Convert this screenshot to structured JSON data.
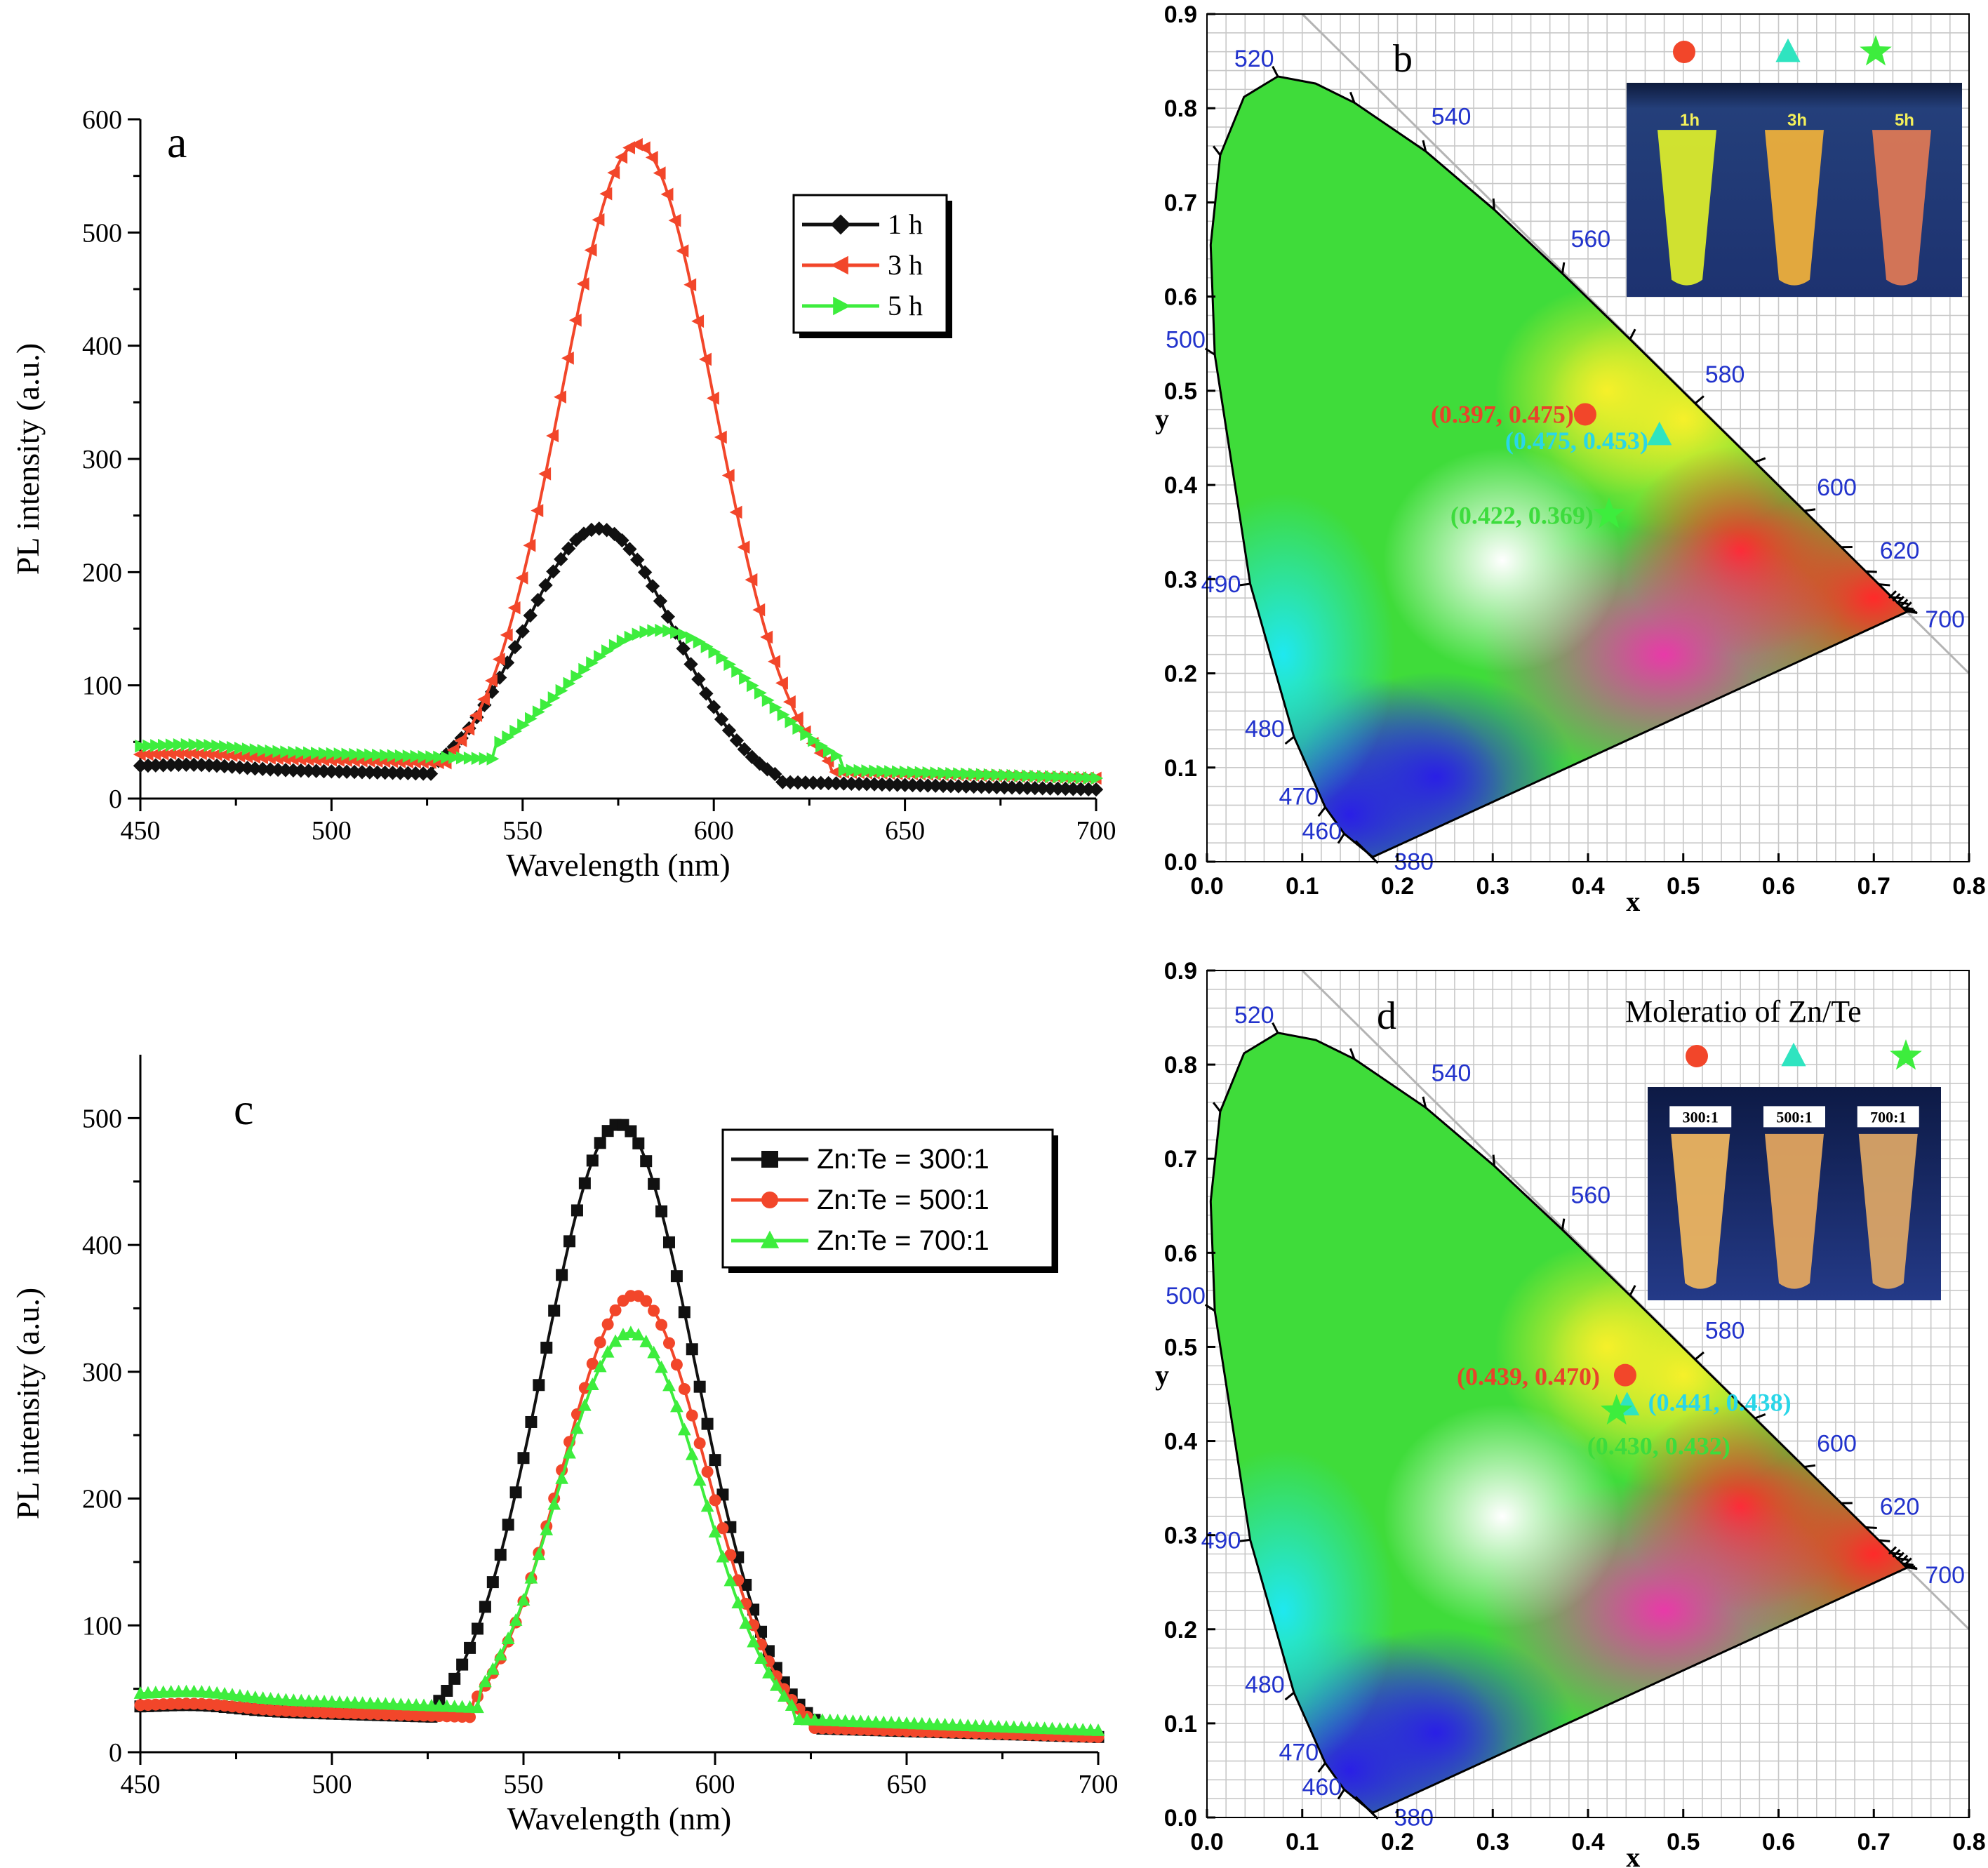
{
  "colors": {
    "series_black": "#111111",
    "series_red": "#f2462a",
    "series_green": "#3ded3d",
    "marker_cyan": "#2fe4c0",
    "label_blue": "#2233cc",
    "grid": "#c8c8c8",
    "label_red": "#e8432a",
    "label_cyan": "#29d6e8",
    "label_green": "#3ddc3d"
  },
  "chart_data": [
    {
      "panel": "a",
      "type": "line",
      "xlabel": "Wavelength (nm)",
      "ylabel": "PL intensity (a.u.)",
      "xlim": [
        450,
        700
      ],
      "ylim": [
        0,
        600
      ],
      "xticks": [
        450,
        500,
        550,
        600,
        650,
        700
      ],
      "yticks": [
        0,
        100,
        200,
        300,
        400,
        500,
        600
      ],
      "legend_position": "top-right",
      "series": [
        {
          "name": "1 h",
          "color": "#111111",
          "marker": "diamond",
          "peak_x": 570,
          "peak_y": 232,
          "width": 20,
          "baseline_left": 28,
          "baseline_right": 8
        },
        {
          "name": "3 h",
          "color": "#f2462a",
          "marker": "triangle-left",
          "peak_x": 580,
          "peak_y": 568,
          "width": 20,
          "baseline_left": 38,
          "baseline_right": 18
        },
        {
          "name": "5 h",
          "color": "#3ded3d",
          "marker": "triangle-right",
          "peak_x": 586,
          "peak_y": 138,
          "width": 26,
          "baseline_left": 45,
          "baseline_right": 18
        }
      ]
    },
    {
      "panel": "b",
      "type": "scatter",
      "xlabel": "x",
      "ylabel": "y",
      "xlim": [
        0.0,
        0.8
      ],
      "ylim": [
        0.0,
        0.9
      ],
      "xticks": [
        "0.0",
        "0.1",
        "0.2",
        "0.3",
        "0.4",
        "0.5",
        "0.6",
        "0.7",
        "0.8"
      ],
      "yticks": [
        "0.0",
        "0.1",
        "0.2",
        "0.3",
        "0.4",
        "0.5",
        "0.6",
        "0.7",
        "0.8",
        "0.9"
      ],
      "wavelength_labels": [
        "380",
        "460",
        "470",
        "480",
        "490",
        "500",
        "520",
        "540",
        "560",
        "580",
        "600",
        "620",
        "700"
      ],
      "points": [
        {
          "label": "(0.397, 0.475)",
          "x": 0.397,
          "y": 0.475,
          "marker": "circle",
          "color": "#f2462a"
        },
        {
          "label": "(0.475, 0.453)",
          "x": 0.475,
          "y": 0.453,
          "marker": "triangle",
          "color": "#2fe4c0"
        },
        {
          "label": "(0.422, 0.369)",
          "x": 0.422,
          "y": 0.369,
          "marker": "star",
          "color": "#3ded3d"
        }
      ],
      "inset_labels": [
        "1h",
        "3h",
        "5h"
      ]
    },
    {
      "panel": "c",
      "type": "line",
      "xlabel": "Wavelength (nm)",
      "ylabel": "PL intensity (a.u.)",
      "xlim": [
        450,
        700
      ],
      "ylim": [
        0,
        550
      ],
      "xticks": [
        450,
        500,
        550,
        600,
        650,
        700
      ],
      "yticks": [
        0,
        100,
        200,
        300,
        400,
        500
      ],
      "legend_position": "top-right",
      "series": [
        {
          "name": "Zn:Te = 300:1",
          "color": "#111111",
          "marker": "square",
          "peak_x": 575,
          "peak_y": 487,
          "width": 20,
          "baseline_left": 35,
          "baseline_right": 12
        },
        {
          "name": "Zn:Te = 500:1",
          "color": "#f2462a",
          "marker": "circle",
          "peak_x": 579,
          "peak_y": 352,
          "width": 19,
          "baseline_left": 36,
          "baseline_right": 12
        },
        {
          "name": "Zn:Te = 700:1",
          "color": "#3ded3d",
          "marker": "triangle",
          "peak_x": 578,
          "peak_y": 320,
          "width": 19,
          "baseline_left": 45,
          "baseline_right": 17
        }
      ]
    },
    {
      "panel": "d",
      "type": "scatter",
      "xlabel": "x",
      "ylabel": "y",
      "title": "Moleratio of Zn/Te",
      "xlim": [
        0.0,
        0.8
      ],
      "ylim": [
        0.0,
        0.9
      ],
      "xticks": [
        "0.0",
        "0.1",
        "0.2",
        "0.3",
        "0.4",
        "0.5",
        "0.6",
        "0.7",
        "0.8"
      ],
      "yticks": [
        "0.0",
        "0.1",
        "0.2",
        "0.3",
        "0.4",
        "0.5",
        "0.6",
        "0.7",
        "0.8",
        "0.9"
      ],
      "wavelength_labels": [
        "380",
        "460",
        "470",
        "480",
        "490",
        "500",
        "520",
        "540",
        "560",
        "580",
        "600",
        "620",
        "700"
      ],
      "points": [
        {
          "label": "(0.439, 0.470)",
          "x": 0.439,
          "y": 0.47,
          "marker": "circle",
          "color": "#f2462a"
        },
        {
          "label": "(0.441, 0.438)",
          "x": 0.441,
          "y": 0.438,
          "marker": "triangle",
          "color": "#2fe4c0"
        },
        {
          "label": "(0.430, 0.432)",
          "x": 0.43,
          "y": 0.432,
          "marker": "star",
          "color": "#3ded3d"
        }
      ],
      "inset_labels": [
        "300:1",
        "500:1",
        "700:1"
      ]
    }
  ]
}
